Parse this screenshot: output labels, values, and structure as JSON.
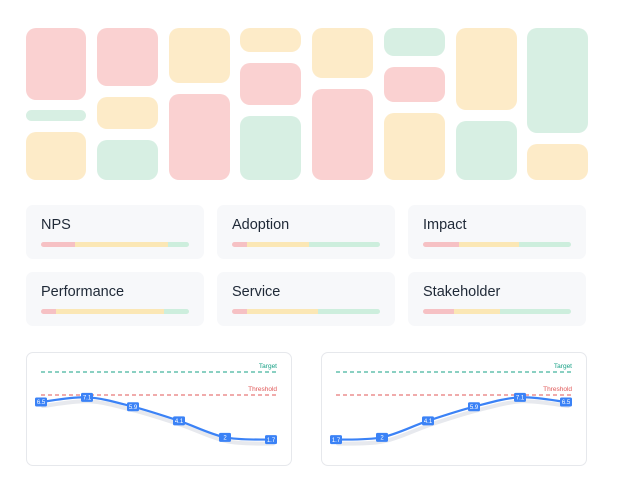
{
  "colors": {
    "red": "#fad1d1",
    "amber": "#fdebc8",
    "green": "#d7efe3",
    "bar_red": "#f6c1c4",
    "bar_amber": "#fbe7b5",
    "bar_green": "#cdeedd",
    "line": "#3b82f6",
    "target": "#16a085",
    "threshold": "#e05757"
  },
  "mosaic": {
    "tiles": [
      {
        "color": "red"
      },
      {
        "color": "green"
      },
      {
        "color": "amber"
      },
      {
        "color": "red"
      },
      {
        "color": "amber"
      },
      {
        "color": "green"
      },
      {
        "color": "amber"
      },
      {
        "color": "red"
      },
      {
        "color": "amber"
      },
      {
        "color": "red"
      },
      {
        "color": "green"
      },
      {
        "color": "amber"
      },
      {
        "color": "red"
      },
      {
        "color": "green"
      },
      {
        "color": "red"
      },
      {
        "color": "amber"
      },
      {
        "color": "amber"
      },
      {
        "color": "green"
      },
      {
        "color": "green"
      },
      {
        "color": "amber"
      }
    ]
  },
  "cards": [
    {
      "title": "NPS",
      "split": [
        0.23,
        0.63,
        0.14
      ]
    },
    {
      "title": "Adoption",
      "split": [
        0.1,
        0.42,
        0.48
      ]
    },
    {
      "title": "Impact",
      "split": [
        0.24,
        0.41,
        0.35
      ]
    },
    {
      "title": "Performance",
      "split": [
        0.1,
        0.73,
        0.17
      ]
    },
    {
      "title": "Service",
      "split": [
        0.1,
        0.48,
        0.42
      ]
    },
    {
      "title": "Stakeholder",
      "split": [
        0.21,
        0.31,
        0.48
      ]
    }
  ],
  "chart_data": [
    {
      "type": "line",
      "title": "",
      "reference_lines": [
        {
          "label": "Target",
          "color": "target"
        },
        {
          "label": "Threshold",
          "color": "threshold"
        }
      ],
      "series": [
        {
          "values": [
            6.5,
            7.1,
            5.9,
            4.1,
            2,
            1.7
          ]
        }
      ]
    },
    {
      "type": "line",
      "title": "",
      "reference_lines": [
        {
          "label": "Target",
          "color": "target"
        },
        {
          "label": "Threshold",
          "color": "threshold"
        }
      ],
      "series": [
        {
          "values": [
            1.7,
            2,
            4.1,
            5.9,
            7.1,
            6.5
          ]
        }
      ]
    }
  ]
}
